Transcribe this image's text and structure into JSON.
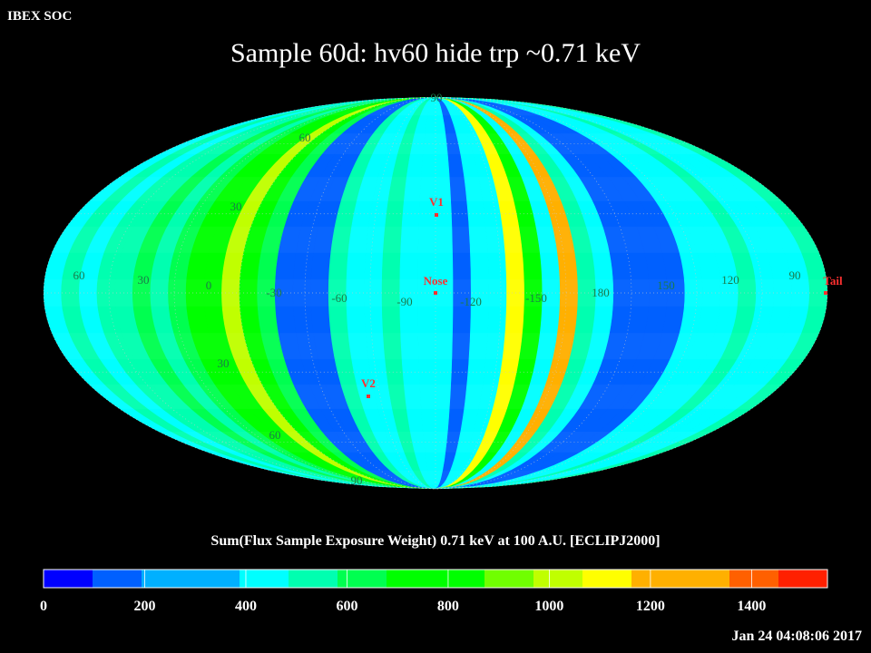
{
  "header": {
    "source": "IBEX SOC"
  },
  "chart_data": {
    "type": "heatmap",
    "projection": "mollweide",
    "title": "Sample 60d: hv60 hide trp ~0.71 keV",
    "colorbar_label": "Sum(Flux Sample Exposure Weight)  0.71 keV at 100 A.U. [ECLIPJ2000]",
    "colorbar_ticks": [
      "0",
      "200",
      "400",
      "600",
      "800",
      "1000",
      "1200",
      "1400"
    ],
    "colorbar_range": [
      0,
      1550
    ],
    "colorbar_colors": [
      "#0000ff",
      "#0060ff",
      "#00b0ff",
      "#00ffff",
      "#00ffb0",
      "#00ff50",
      "#00ff00",
      "#70ff00",
      "#c0ff00",
      "#ffff00",
      "#ffb000",
      "#ff6000",
      "#ff2000"
    ],
    "longitude_labels": [
      "60",
      "30",
      "0",
      "-30",
      "-60",
      "-90",
      "-120",
      "-150",
      "180",
      "150",
      "120",
      "90"
    ],
    "latitude_labels": [
      "90",
      "60",
      "30",
      "30",
      "60",
      "90"
    ],
    "markers": [
      {
        "name": "V1",
        "color": "#ff3030"
      },
      {
        "name": "Nose",
        "color": "#ff3030"
      },
      {
        "name": "V2",
        "color": "#ff3030"
      },
      {
        "name": "Tail",
        "color": "#ff3030"
      }
    ],
    "meridian_band_flux": [
      470,
      520,
      430,
      560,
      490,
      600,
      520,
      660,
      720,
      820,
      960,
      780,
      680,
      140,
      130,
      150,
      520,
      410,
      440,
      520,
      380,
      460,
      420,
      150,
      430,
      460,
      1180,
      720,
      430,
      1200,
      520,
      420,
      150,
      130,
      140,
      140,
      460,
      380,
      420,
      500,
      450,
      470,
      440,
      520
    ]
  },
  "footer": {
    "timestamp": "Jan 24 04:08:06 2017"
  }
}
